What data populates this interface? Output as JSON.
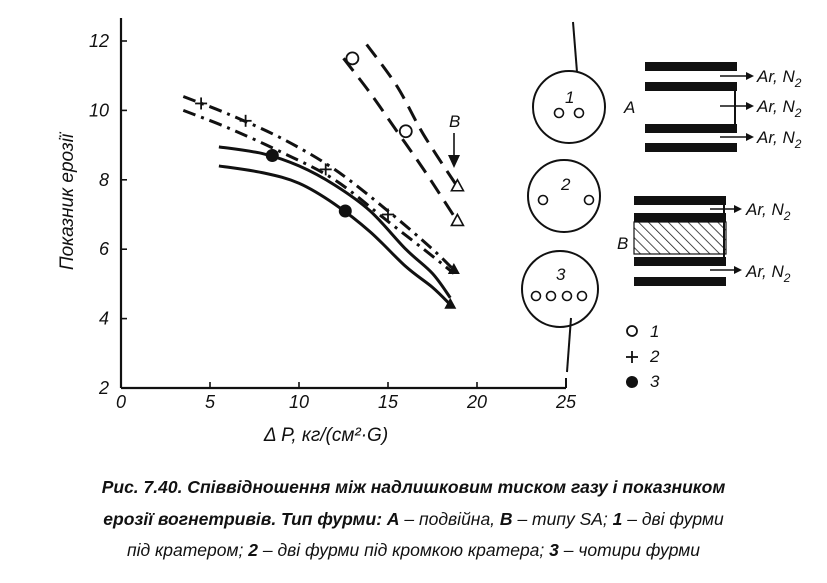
{
  "chart_data": {
    "type": "line",
    "xlabel": "Δ P, кг/(см²·G)",
    "ylabel": "Показник ерозії",
    "xlim": [
      0,
      25
    ],
    "ylim": [
      2,
      12.5
    ],
    "x_ticks": [
      "0",
      "5",
      "10",
      "15",
      "20",
      "25"
    ],
    "y_ticks": [
      "2",
      "4",
      "6",
      "8",
      "10",
      "12"
    ],
    "grid": false,
    "series": [
      {
        "group": "A",
        "style": "solid",
        "marker": "triangle-filled",
        "x": [
          5.5,
          8,
          10,
          12,
          14,
          16,
          17.5,
          18.5
        ],
        "y": [
          8.4,
          8.2,
          7.9,
          7.3,
          6.5,
          5.5,
          4.9,
          4.4
        ]
      },
      {
        "group": "A",
        "style": "solid",
        "x": [
          5.5,
          8,
          10,
          12,
          14,
          16,
          17.5,
          18.5
        ],
        "y": [
          8.95,
          8.75,
          8.4,
          7.85,
          7.1,
          6.0,
          5.3,
          4.6
        ]
      },
      {
        "group": "A",
        "style": "dash-dot",
        "marker": "triangle-filled",
        "x": [
          3.5,
          6,
          9,
          12,
          15,
          17.5,
          18.7
        ],
        "y": [
          10.4,
          9.9,
          9.2,
          8.3,
          7.1,
          6.0,
          5.4
        ]
      },
      {
        "group": "A",
        "style": "dash-dot",
        "x": [
          3.5,
          6,
          9,
          12,
          15,
          17.5,
          18.7
        ],
        "y": [
          10.0,
          9.5,
          8.8,
          8.0,
          6.8,
          5.8,
          5.3
        ]
      },
      {
        "group": "B",
        "style": "dashed",
        "marker": "triangle-open",
        "x": [
          12.5,
          14,
          15.5,
          17,
          18.9
        ],
        "y": [
          11.5,
          10.5,
          9.4,
          8.3,
          6.8
        ]
      },
      {
        "group": "B",
        "style": "dashed",
        "marker": "triangle-open",
        "x": [
          13.8,
          15.5,
          17,
          18.9
        ],
        "y": [
          11.9,
          10.7,
          9.3,
          7.8
        ]
      }
    ],
    "points": [
      {
        "type": "1",
        "x": 13.0,
        "y": 11.5
      },
      {
        "type": "1",
        "x": 16.0,
        "y": 9.4
      },
      {
        "type": "2",
        "x": 4.5,
        "y": 10.2
      },
      {
        "type": "2",
        "x": 7.0,
        "y": 9.7
      },
      {
        "type": "2",
        "x": 11.5,
        "y": 8.3
      },
      {
        "type": "2",
        "x": 15.0,
        "y": 7.0
      },
      {
        "type": "3",
        "x": 8.5,
        "y": 8.7
      },
      {
        "type": "3",
        "x": 12.6,
        "y": 7.1
      }
    ],
    "annotations": [
      "B"
    ]
  },
  "legend": {
    "items": [
      {
        "num": "1",
        "marker": "open-circle"
      },
      {
        "num": "2",
        "marker": "plus"
      },
      {
        "num": "3",
        "marker": "filled-circle"
      }
    ]
  },
  "schemes": {
    "circles": [
      {
        "label": "1",
        "holes": 2
      },
      {
        "label": "2",
        "holes": 2
      },
      {
        "label": "3",
        "holes": 4
      }
    ],
    "tuyere_A": {
      "label": "A",
      "gas_label": "Ar, N",
      "gas_sub": "2"
    },
    "tuyere_B": {
      "label": "B",
      "gas_label": "Ar, N",
      "gas_sub": "2"
    }
  },
  "caption": {
    "line1": "Рис. 7.40. Співвідношення між надлишковим тиском газу і показником",
    "line2_bold": "ерозії вогнетривів. Тип фурми:",
    "line2_a": "А",
    "line2_a_text": "– подвійна,",
    "line2_b": "В",
    "line2_b_text": "– типу SA;",
    "line2_1": "1",
    "line2_1_text": "– дві фурми",
    "line3_start": "під кратером;",
    "line3_2": "2",
    "line3_2_text": "– дві фурми під кромкою кратера;",
    "line3_3": "3",
    "line3_3_text": "– чотири фурми"
  }
}
